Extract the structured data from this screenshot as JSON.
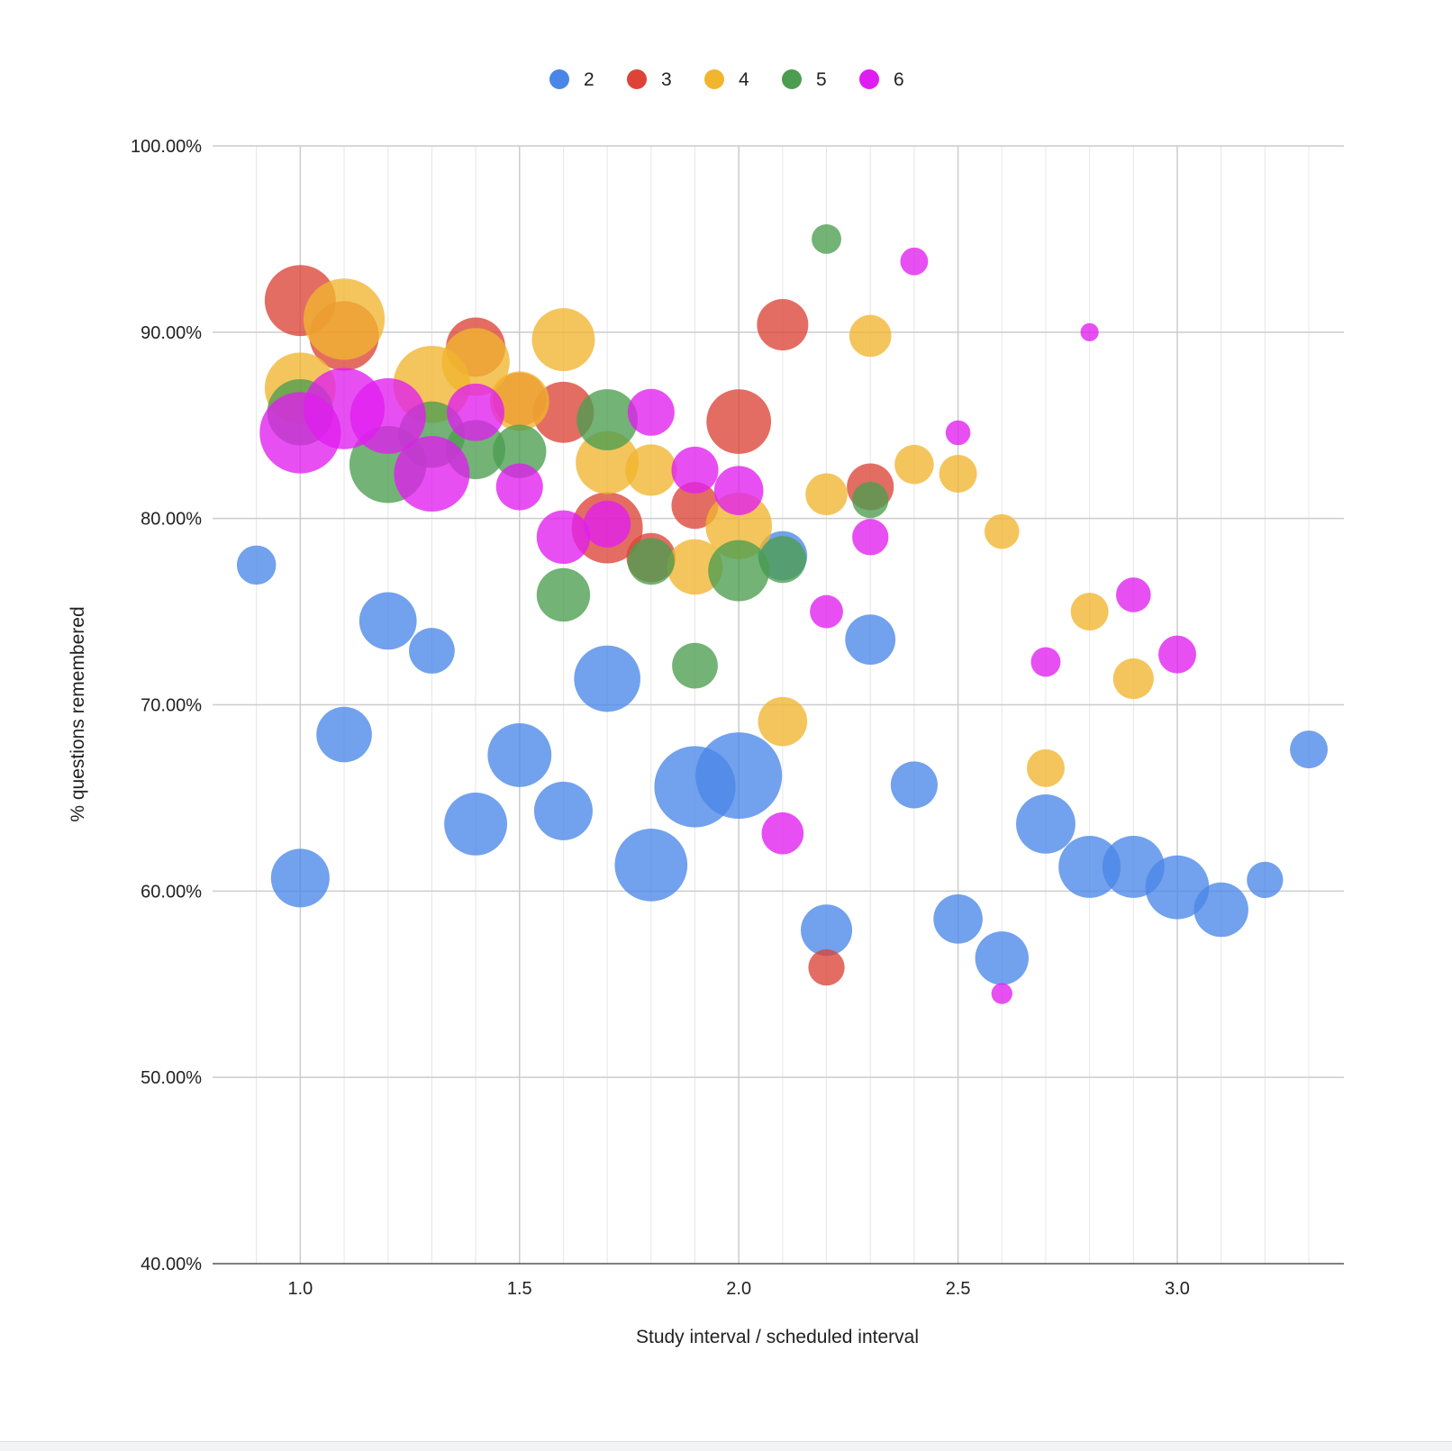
{
  "chart_data": {
    "type": "bubble",
    "title": "",
    "xlabel": "Study interval / scheduled interval",
    "ylabel": "% questions remembered",
    "xlim": [
      0.8,
      3.38
    ],
    "ylim": [
      0.4,
      1.0
    ],
    "x_ticks": [
      1.0,
      1.5,
      2.0,
      2.5,
      3.0
    ],
    "x_tick_labels": [
      "1.0",
      "1.5",
      "2.0",
      "2.5",
      "3.0"
    ],
    "x_minor_step": 0.1,
    "y_ticks": [
      0.4,
      0.5,
      0.6,
      0.7,
      0.8,
      0.9,
      1.0
    ],
    "y_tick_labels": [
      "40.00%",
      "50.00%",
      "60.00%",
      "70.00%",
      "80.00%",
      "90.00%",
      "100.00%"
    ],
    "grid": true,
    "legend_position": "top-center",
    "series": [
      {
        "name": "2",
        "color": "#4a86e8",
        "points": [
          {
            "x": 0.9,
            "y": 0.775,
            "size": 700
          },
          {
            "x": 1.0,
            "y": 0.607,
            "size": 1560
          },
          {
            "x": 1.1,
            "y": 0.684,
            "size": 1400
          },
          {
            "x": 1.2,
            "y": 0.745,
            "size": 1500
          },
          {
            "x": 1.3,
            "y": 0.729,
            "size": 950
          },
          {
            "x": 1.4,
            "y": 0.636,
            "size": 1800
          },
          {
            "x": 1.5,
            "y": 0.673,
            "size": 1850
          },
          {
            "x": 1.6,
            "y": 0.643,
            "size": 1560
          },
          {
            "x": 1.7,
            "y": 0.714,
            "size": 2000
          },
          {
            "x": 1.8,
            "y": 0.614,
            "size": 2400
          },
          {
            "x": 1.9,
            "y": 0.656,
            "size": 3000
          },
          {
            "x": 2.0,
            "y": 0.662,
            "size": 3400
          },
          {
            "x": 2.1,
            "y": 0.78,
            "size": 1100
          },
          {
            "x": 2.2,
            "y": 0.579,
            "size": 1200
          },
          {
            "x": 2.3,
            "y": 0.735,
            "size": 1150
          },
          {
            "x": 2.4,
            "y": 0.657,
            "size": 1000
          },
          {
            "x": 2.5,
            "y": 0.585,
            "size": 1100
          },
          {
            "x": 2.6,
            "y": 0.564,
            "size": 1300
          },
          {
            "x": 2.7,
            "y": 0.636,
            "size": 1600
          },
          {
            "x": 2.8,
            "y": 0.613,
            "size": 1750
          },
          {
            "x": 2.9,
            "y": 0.613,
            "size": 1750
          },
          {
            "x": 3.0,
            "y": 0.602,
            "size": 1850
          },
          {
            "x": 3.1,
            "y": 0.59,
            "size": 1350
          },
          {
            "x": 3.2,
            "y": 0.606,
            "size": 600
          },
          {
            "x": 3.3,
            "y": 0.676,
            "size": 650
          }
        ]
      },
      {
        "name": "3",
        "color": "#db4437",
        "points": [
          {
            "x": 1.0,
            "y": 0.917,
            "size": 2300
          },
          {
            "x": 1.1,
            "y": 0.898,
            "size": 2200
          },
          {
            "x": 1.4,
            "y": 0.892,
            "size": 1600
          },
          {
            "x": 1.5,
            "y": 0.864,
            "size": 1300
          },
          {
            "x": 1.6,
            "y": 0.857,
            "size": 1700
          },
          {
            "x": 1.7,
            "y": 0.795,
            "size": 2300
          },
          {
            "x": 1.8,
            "y": 0.779,
            "size": 1100
          },
          {
            "x": 1.9,
            "y": 0.807,
            "size": 1000
          },
          {
            "x": 2.0,
            "y": 0.852,
            "size": 1900
          },
          {
            "x": 2.1,
            "y": 0.904,
            "size": 1200
          },
          {
            "x": 2.2,
            "y": 0.559,
            "size": 600
          },
          {
            "x": 2.3,
            "y": 0.817,
            "size": 1000
          }
        ]
      },
      {
        "name": "4",
        "color": "#f1b52e",
        "points": [
          {
            "x": 1.0,
            "y": 0.87,
            "size": 2300
          },
          {
            "x": 1.1,
            "y": 0.907,
            "size": 3000
          },
          {
            "x": 1.3,
            "y": 0.872,
            "size": 2700
          },
          {
            "x": 1.4,
            "y": 0.884,
            "size": 2100
          },
          {
            "x": 1.5,
            "y": 0.863,
            "size": 1600
          },
          {
            "x": 1.6,
            "y": 0.896,
            "size": 1800
          },
          {
            "x": 1.7,
            "y": 0.83,
            "size": 1800
          },
          {
            "x": 1.8,
            "y": 0.826,
            "size": 1200
          },
          {
            "x": 1.9,
            "y": 0.774,
            "size": 1400
          },
          {
            "x": 2.0,
            "y": 0.796,
            "size": 2000
          },
          {
            "x": 2.1,
            "y": 0.691,
            "size": 1100
          },
          {
            "x": 2.2,
            "y": 0.813,
            "size": 800
          },
          {
            "x": 2.3,
            "y": 0.898,
            "size": 800
          },
          {
            "x": 2.4,
            "y": 0.829,
            "size": 700
          },
          {
            "x": 2.5,
            "y": 0.824,
            "size": 650
          },
          {
            "x": 2.6,
            "y": 0.793,
            "size": 550
          },
          {
            "x": 2.7,
            "y": 0.666,
            "size": 650
          },
          {
            "x": 2.8,
            "y": 0.75,
            "size": 650
          },
          {
            "x": 2.9,
            "y": 0.714,
            "size": 750
          }
        ]
      },
      {
        "name": "5",
        "color": "#4c9d4f",
        "points": [
          {
            "x": 1.0,
            "y": 0.857,
            "size": 2000
          },
          {
            "x": 1.2,
            "y": 0.829,
            "size": 2700
          },
          {
            "x": 1.3,
            "y": 0.845,
            "size": 2000
          },
          {
            "x": 1.4,
            "y": 0.837,
            "size": 1600
          },
          {
            "x": 1.5,
            "y": 0.836,
            "size": 1300
          },
          {
            "x": 1.6,
            "y": 0.759,
            "size": 1300
          },
          {
            "x": 1.7,
            "y": 0.853,
            "size": 1700
          },
          {
            "x": 1.8,
            "y": 0.777,
            "size": 1000
          },
          {
            "x": 1.9,
            "y": 0.721,
            "size": 950
          },
          {
            "x": 2.0,
            "y": 0.772,
            "size": 1700
          },
          {
            "x": 2.1,
            "y": 0.778,
            "size": 1000
          },
          {
            "x": 2.2,
            "y": 0.95,
            "size": 400
          },
          {
            "x": 2.3,
            "y": 0.81,
            "size": 600
          }
        ]
      },
      {
        "name": "6",
        "color": "#e01df0",
        "points": [
          {
            "x": 1.0,
            "y": 0.846,
            "size": 3000
          },
          {
            "x": 1.1,
            "y": 0.859,
            "size": 3000
          },
          {
            "x": 1.2,
            "y": 0.855,
            "size": 2600
          },
          {
            "x": 1.3,
            "y": 0.824,
            "size": 2600
          },
          {
            "x": 1.4,
            "y": 0.857,
            "size": 1500
          },
          {
            "x": 1.5,
            "y": 0.817,
            "size": 1000
          },
          {
            "x": 1.6,
            "y": 0.79,
            "size": 1300
          },
          {
            "x": 1.7,
            "y": 0.797,
            "size": 1000
          },
          {
            "x": 1.8,
            "y": 0.857,
            "size": 1000
          },
          {
            "x": 1.9,
            "y": 0.826,
            "size": 1000
          },
          {
            "x": 2.0,
            "y": 0.815,
            "size": 1100
          },
          {
            "x": 2.1,
            "y": 0.631,
            "size": 800
          },
          {
            "x": 2.2,
            "y": 0.75,
            "size": 500
          },
          {
            "x": 2.3,
            "y": 0.79,
            "size": 600
          },
          {
            "x": 2.4,
            "y": 0.938,
            "size": 350
          },
          {
            "x": 2.5,
            "y": 0.846,
            "size": 280
          },
          {
            "x": 2.6,
            "y": 0.545,
            "size": 200
          },
          {
            "x": 2.7,
            "y": 0.723,
            "size": 400
          },
          {
            "x": 2.8,
            "y": 0.9,
            "size": 150
          },
          {
            "x": 2.9,
            "y": 0.759,
            "size": 550
          },
          {
            "x": 3.0,
            "y": 0.727,
            "size": 650
          }
        ]
      }
    ]
  }
}
